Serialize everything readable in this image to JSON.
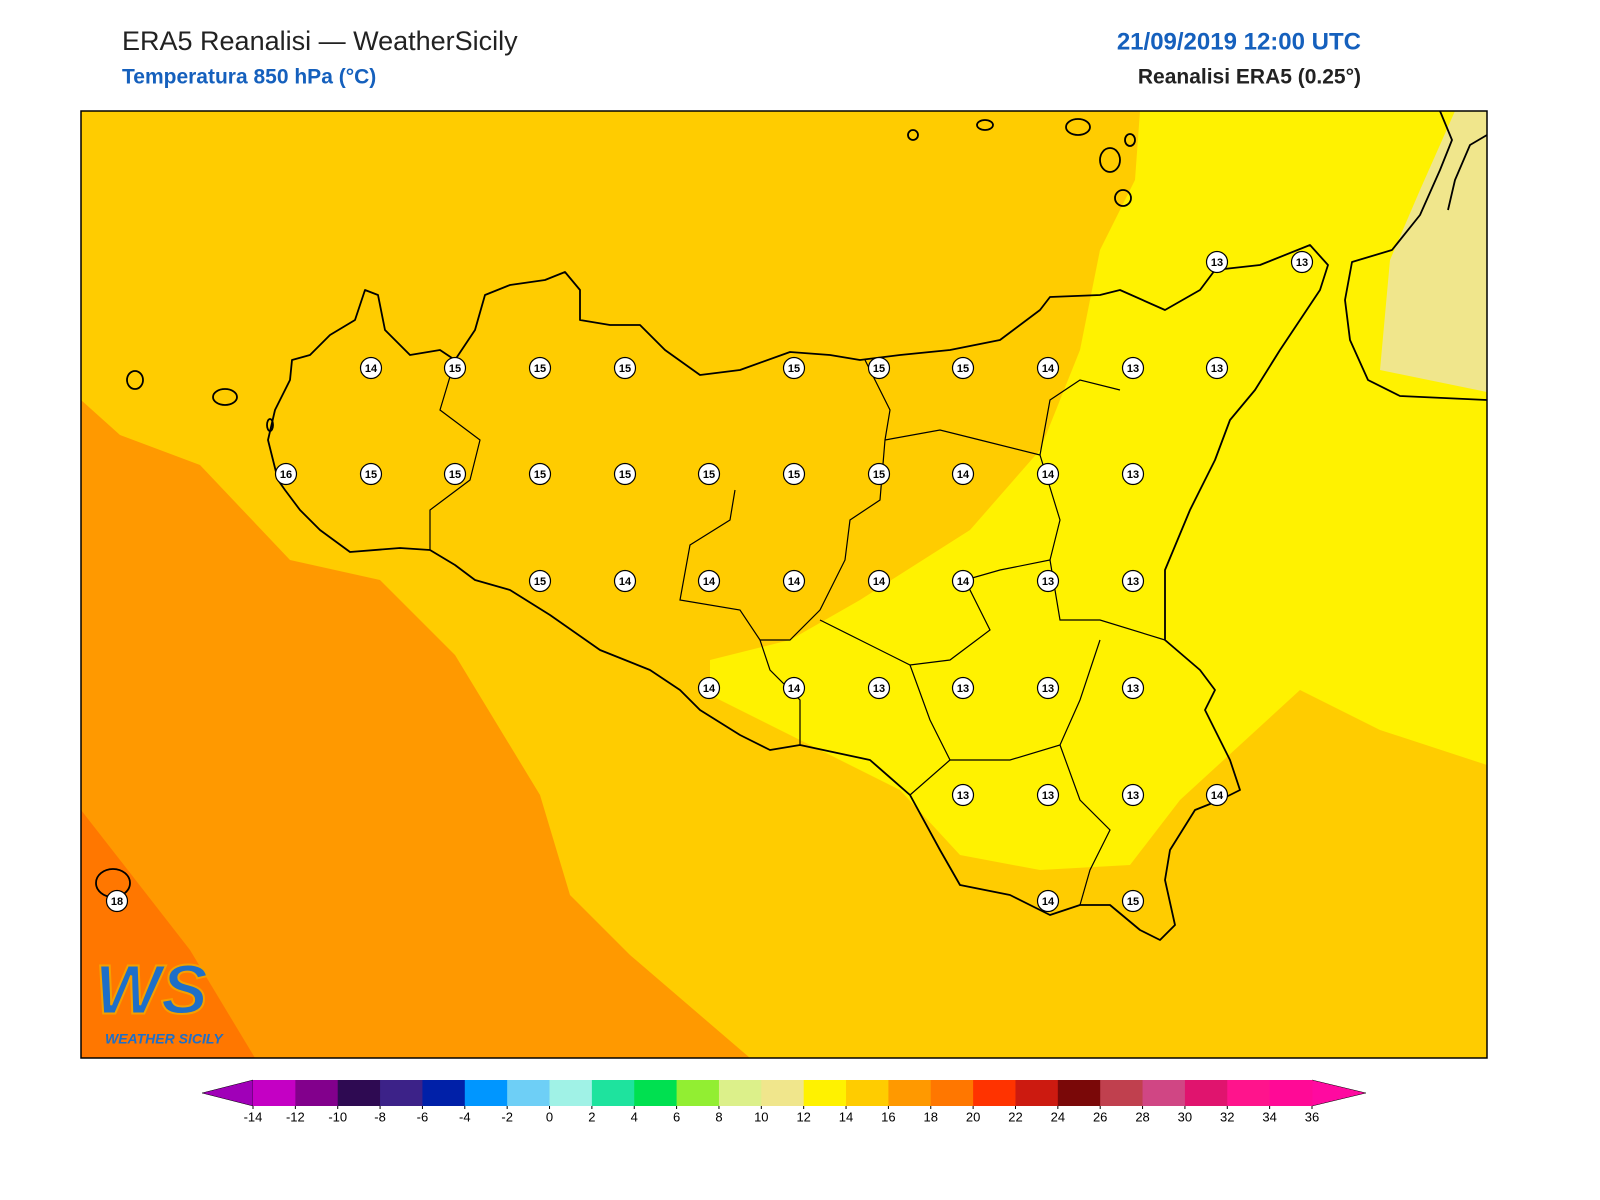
{
  "header": {
    "title": "ERA5 Reanalisi — WeatherSicily",
    "subtitle": "Temperatura 850 hPa (°C)",
    "datetime": "21/09/2019 12:00 UTC",
    "source": "Reanalisi ERA5 (0.25°)"
  },
  "map": {
    "points": [
      13,
      13,
      14,
      15,
      15,
      15,
      15,
      15,
      15,
      14,
      13,
      13,
      16,
      15,
      15,
      15,
      15,
      15,
      15,
      15,
      14,
      14,
      13,
      15,
      14,
      14,
      14,
      14,
      14,
      13,
      13,
      14,
      14,
      13,
      13,
      13,
      13,
      13,
      13,
      13,
      14,
      18,
      14,
      15
    ]
  },
  "logo": {
    "mark": "WS",
    "name": "WEATHER SICILY"
  },
  "colorbar": {
    "ticks": [
      -14,
      -12,
      -10,
      -8,
      -6,
      -4,
      -2,
      0,
      2,
      4,
      6,
      8,
      10,
      12,
      14,
      16,
      18,
      20,
      22,
      24,
      26,
      28,
      30,
      32,
      34,
      36
    ],
    "under": "#a000b8",
    "over": "#ff0aa0",
    "colors": [
      "#c400c4",
      "#82008c",
      "#2e0a52",
      "#3c2288",
      "#0020a8",
      "#0096ff",
      "#6ecff6",
      "#a0f2e6",
      "#1ee39e",
      "#00e050",
      "#92ee32",
      "#dcf08a",
      "#f0e68c",
      "#fff200",
      "#ffcc00",
      "#ff9900",
      "#ff7700",
      "#ff3300",
      "#cc1a10",
      "#7a0808",
      "#c0404e",
      "#d04684",
      "#e0146e",
      "#ff148c",
      "#ff0a96"
    ]
  }
}
